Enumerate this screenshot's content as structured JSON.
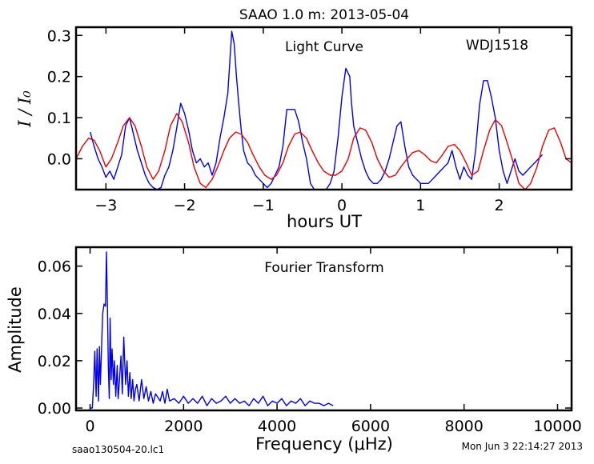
{
  "figure": {
    "title": "SAAO 1.0 m:  2013-05-04",
    "footer_left": "saao130504-20.lc1",
    "footer_right": "Mon Jun  3 22:14:27 2013"
  },
  "chart_data": [
    {
      "type": "line",
      "title": "Light Curve",
      "annotation": "WDJ1518",
      "xlabel": "hours UT",
      "ylabel": "I / I₀",
      "xlim": [
        -3.38,
        2.92
      ],
      "ylim": [
        -0.075,
        0.32
      ],
      "xticks": [
        -3,
        -2,
        -1,
        0,
        1,
        2
      ],
      "xtick_labels": [
        "−3",
        "−2",
        "−1",
        "0",
        "1",
        "2"
      ],
      "yticks": [
        0.0,
        0.1,
        0.2,
        0.3
      ],
      "ytick_labels": [
        "0.0",
        "0.1",
        "0.2",
        "0.3"
      ],
      "grid": false,
      "series": [
        {
          "color": "#0000ee",
          "x": [
            -3.2,
            -3.15,
            -3.1,
            -3.05,
            -3.0,
            -2.95,
            -2.9,
            -2.85,
            -2.8,
            -2.75,
            -2.7,
            -2.65,
            -2.6,
            -2.55,
            -2.5,
            -2.45,
            -2.4,
            -2.35,
            -2.3,
            -2.25,
            -2.2,
            -2.15,
            -2.1,
            -2.05,
            -2.0,
            -1.95,
            -1.9,
            -1.85,
            -1.8,
            -1.75,
            -1.7,
            -1.65,
            -1.6,
            -1.55,
            -1.5,
            -1.45,
            -1.4,
            -1.37,
            -1.34,
            -1.31,
            -1.28,
            -1.25,
            -1.2,
            -1.15,
            -1.1,
            -1.05,
            -1.0,
            -0.95,
            -0.9,
            -0.85,
            -0.8,
            -0.75,
            -0.7,
            -0.65,
            -0.6,
            -0.55,
            -0.5,
            -0.45,
            -0.4,
            -0.35,
            -0.3,
            -0.25,
            -0.2,
            -0.15,
            -0.1,
            -0.05,
            0.0,
            0.05,
            0.1,
            0.12,
            0.15,
            0.2,
            0.25,
            0.3,
            0.35,
            0.4,
            0.45,
            0.5,
            0.55,
            0.6,
            0.65,
            0.7,
            0.75,
            0.8,
            0.85,
            0.9,
            0.95,
            1.0,
            1.05,
            1.1,
            1.15,
            1.2,
            1.25,
            1.3,
            1.35,
            1.4,
            1.45,
            1.5,
            1.55,
            1.6,
            1.65,
            1.7,
            1.75,
            1.8,
            1.85,
            1.9,
            1.95,
            2.0,
            2.05,
            2.1,
            2.15,
            2.2,
            2.25,
            2.3,
            2.35,
            2.4,
            2.45,
            2.5,
            2.55
          ],
          "y": [
            0.065,
            0.03,
            0.0,
            -0.02,
            -0.045,
            -0.03,
            -0.05,
            -0.02,
            0.01,
            0.08,
            0.1,
            0.06,
            0.02,
            -0.01,
            -0.04,
            -0.06,
            -0.07,
            -0.075,
            -0.07,
            -0.04,
            -0.02,
            0.02,
            0.075,
            0.135,
            0.11,
            0.07,
            0.02,
            -0.01,
            0.0,
            -0.02,
            -0.01,
            -0.04,
            -0.01,
            0.05,
            0.1,
            0.16,
            0.31,
            0.28,
            0.2,
            0.13,
            0.07,
            0.02,
            -0.01,
            -0.02,
            -0.04,
            -0.05,
            -0.06,
            -0.07,
            -0.06,
            -0.04,
            -0.02,
            0.03,
            0.12,
            0.12,
            0.12,
            0.09,
            0.04,
            0.0,
            -0.06,
            -0.075,
            -0.075,
            -0.075,
            -0.075,
            -0.06,
            -0.03,
            0.05,
            0.15,
            0.22,
            0.2,
            0.14,
            0.08,
            0.04,
            0.0,
            -0.03,
            -0.05,
            -0.06,
            -0.06,
            -0.05,
            -0.03,
            0.0,
            0.04,
            0.08,
            0.09,
            0.03,
            -0.02,
            -0.04,
            -0.05,
            -0.06,
            -0.06,
            -0.06,
            -0.05,
            -0.04,
            -0.03,
            -0.02,
            -0.01,
            0.02,
            -0.02,
            -0.05,
            -0.02,
            -0.04,
            -0.05,
            0.02,
            0.13,
            0.19,
            0.19,
            0.15,
            0.1,
            0.02,
            -0.03,
            -0.06,
            -0.03,
            0.0,
            -0.03,
            -0.04,
            -0.03,
            -0.02,
            -0.01,
            0.0,
            0.01
          ]
        },
        {
          "color": "#ee0000",
          "x": [
            -3.38,
            -3.3,
            -3.22,
            -3.15,
            -3.08,
            -3.0,
            -2.93,
            -2.85,
            -2.78,
            -2.7,
            -2.63,
            -2.55,
            -2.48,
            -2.4,
            -2.33,
            -2.25,
            -2.18,
            -2.1,
            -2.03,
            -1.95,
            -1.88,
            -1.8,
            -1.73,
            -1.65,
            -1.58,
            -1.5,
            -1.43,
            -1.35,
            -1.28,
            -1.2,
            -1.13,
            -1.05,
            -0.98,
            -0.9,
            -0.83,
            -0.75,
            -0.68,
            -0.6,
            -0.53,
            -0.45,
            -0.38,
            -0.3,
            -0.23,
            -0.15,
            -0.08,
            0.0,
            0.08,
            0.15,
            0.23,
            0.3,
            0.38,
            0.45,
            0.53,
            0.6,
            0.68,
            0.75,
            0.83,
            0.9,
            0.98,
            1.05,
            1.13,
            1.2,
            1.28,
            1.35,
            1.43,
            1.5,
            1.58,
            1.65,
            1.73,
            1.8,
            1.88,
            1.95,
            2.03,
            2.1,
            2.18,
            2.25,
            2.33,
            2.4,
            2.48,
            2.55,
            2.63,
            2.7,
            2.78,
            2.85,
            2.92
          ],
          "y": [
            0.0,
            0.03,
            0.05,
            0.045,
            0.02,
            -0.02,
            0.0,
            0.04,
            0.08,
            0.1,
            0.08,
            0.03,
            -0.02,
            -0.05,
            -0.03,
            0.02,
            0.08,
            0.11,
            0.09,
            0.04,
            -0.02,
            -0.06,
            -0.07,
            -0.05,
            -0.02,
            0.02,
            0.05,
            0.065,
            0.06,
            0.04,
            0.01,
            -0.02,
            -0.04,
            -0.05,
            -0.04,
            -0.01,
            0.03,
            0.06,
            0.065,
            0.05,
            0.02,
            -0.01,
            -0.03,
            -0.04,
            -0.04,
            -0.03,
            0.0,
            0.05,
            0.075,
            0.07,
            0.04,
            0.0,
            -0.03,
            -0.045,
            -0.04,
            -0.02,
            0.0,
            0.015,
            0.02,
            0.01,
            -0.005,
            -0.01,
            0.01,
            0.03,
            0.035,
            0.02,
            -0.01,
            -0.04,
            -0.03,
            0.02,
            0.07,
            0.095,
            0.08,
            0.04,
            -0.01,
            -0.06,
            -0.075,
            -0.06,
            -0.02,
            0.03,
            0.07,
            0.075,
            0.04,
            0.0,
            -0.01
          ]
        }
      ]
    },
    {
      "type": "line",
      "title": "Fourier Transform",
      "xlabel": "Frequency (μHz)",
      "ylabel": "Amplitude",
      "xlim": [
        -300,
        10300
      ],
      "ylim": [
        -0.001,
        0.068
      ],
      "xticks": [
        0,
        2000,
        4000,
        6000,
        8000,
        10000
      ],
      "xtick_labels": [
        "0",
        "2000",
        "4000",
        "6000",
        "8000",
        "10000"
      ],
      "yticks": [
        0.0,
        0.02,
        0.04,
        0.06
      ],
      "ytick_labels": [
        "0.00",
        "0.02",
        "0.04",
        "0.06"
      ],
      "grid": false,
      "series": [
        {
          "color": "#0000ee",
          "x": [
            0,
            50,
            80,
            100,
            130,
            150,
            180,
            200,
            220,
            250,
            270,
            300,
            330,
            350,
            370,
            390,
            410,
            430,
            450,
            470,
            500,
            520,
            550,
            580,
            600,
            630,
            660,
            690,
            720,
            760,
            790,
            820,
            850,
            880,
            910,
            940,
            970,
            1000,
            1050,
            1100,
            1150,
            1200,
            1250,
            1300,
            1350,
            1400,
            1500,
            1550,
            1600,
            1650,
            1700,
            1800,
            1900,
            2000,
            2100,
            2200,
            2300,
            2400,
            2500,
            2600,
            2700,
            2800,
            2900,
            3000,
            3100,
            3200,
            3300,
            3400,
            3500,
            3600,
            3700,
            3800,
            3900,
            4000,
            4100,
            4200,
            4300,
            4400,
            4500,
            4600,
            4700,
            4800,
            4900,
            5000,
            5100,
            5200
          ],
          "y": [
            0.0,
            0.0,
            0.012,
            0.024,
            0.005,
            0.025,
            0.003,
            0.026,
            0.01,
            0.028,
            0.04,
            0.044,
            0.043,
            0.066,
            0.045,
            0.018,
            0.004,
            0.038,
            0.012,
            0.025,
            0.01,
            0.02,
            0.005,
            0.018,
            0.004,
            0.012,
            0.022,
            0.006,
            0.03,
            0.01,
            0.02,
            0.005,
            0.015,
            0.004,
            0.012,
            0.003,
            0.008,
            0.01,
            0.003,
            0.012,
            0.004,
            0.009,
            0.003,
            0.007,
            0.002,
            0.006,
            0.003,
            0.007,
            0.002,
            0.008,
            0.003,
            0.004,
            0.002,
            0.005,
            0.002,
            0.004,
            0.002,
            0.005,
            0.001,
            0.004,
            0.002,
            0.003,
            0.005,
            0.002,
            0.004,
            0.002,
            0.003,
            0.001,
            0.004,
            0.002,
            0.005,
            0.001,
            0.003,
            0.002,
            0.004,
            0.001,
            0.003,
            0.002,
            0.004,
            0.001,
            0.003,
            0.002,
            0.002,
            0.001,
            0.002,
            0.001
          ]
        }
      ]
    }
  ]
}
